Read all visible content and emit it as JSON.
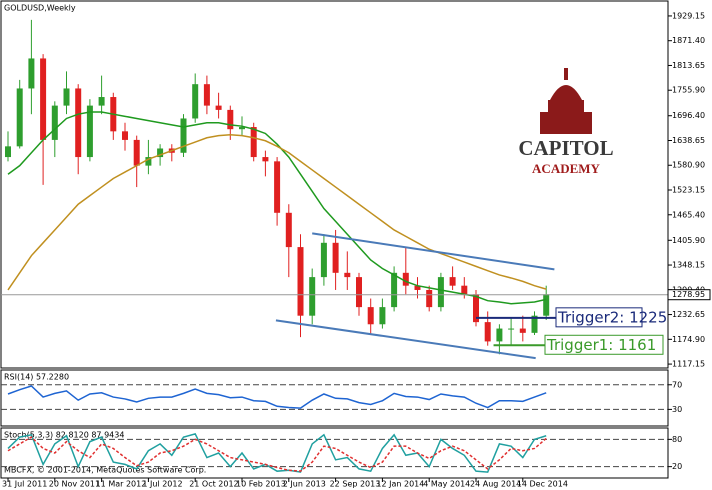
{
  "chart_data": [
    {
      "type": "candlestick",
      "title": "GOLDUSD,Weekly",
      "categories": [
        "31 Jul 2011",
        null,
        null,
        null,
        "20 Nov 2011",
        null,
        null,
        null,
        "11 Mar 2012",
        null,
        null,
        null,
        "1 Jul 2012",
        null,
        null,
        null,
        "21 Oct 2012",
        null,
        null,
        null,
        "10 Feb 2013",
        null,
        null,
        null,
        "2 Jun 2013",
        null,
        null,
        null,
        "22 Sep 2013",
        null,
        null,
        null,
        "12 Jan 2014",
        null,
        null,
        null,
        "4 May 2014",
        null,
        null,
        null,
        "24 Aug 2014",
        null,
        null,
        null,
        "14 Dec 2014",
        null,
        null
      ],
      "ohlc": [
        [
          1600,
          1660,
          1590,
          1625
        ],
        [
          1625,
          1780,
          1620,
          1760
        ],
        [
          1760,
          1920,
          1700,
          1830
        ],
        [
          1830,
          1840,
          1535,
          1640
        ],
        [
          1640,
          1730,
          1600,
          1720
        ],
        [
          1720,
          1800,
          1700,
          1760
        ],
        [
          1760,
          1770,
          1560,
          1600
        ],
        [
          1600,
          1735,
          1590,
          1720
        ],
        [
          1720,
          1790,
          1700,
          1740
        ],
        [
          1740,
          1750,
          1640,
          1660
        ],
        [
          1660,
          1680,
          1615,
          1640
        ],
        [
          1640,
          1650,
          1530,
          1580
        ],
        [
          1580,
          1640,
          1560,
          1600
        ],
        [
          1600,
          1630,
          1580,
          1620
        ],
        [
          1620,
          1630,
          1590,
          1610
        ],
        [
          1610,
          1700,
          1600,
          1690
        ],
        [
          1690,
          1795,
          1680,
          1770
        ],
        [
          1770,
          1790,
          1700,
          1720
        ],
        [
          1720,
          1750,
          1690,
          1710
        ],
        [
          1710,
          1720,
          1640,
          1665
        ],
        [
          1665,
          1695,
          1650,
          1670
        ],
        [
          1670,
          1680,
          1590,
          1600
        ],
        [
          1600,
          1615,
          1555,
          1590
        ],
        [
          1590,
          1600,
          1440,
          1470
        ],
        [
          1470,
          1490,
          1320,
          1390
        ],
        [
          1390,
          1420,
          1180,
          1230
        ],
        [
          1230,
          1340,
          1210,
          1320
        ],
        [
          1320,
          1420,
          1300,
          1400
        ],
        [
          1400,
          1430,
          1290,
          1330
        ],
        [
          1330,
          1380,
          1290,
          1320
        ],
        [
          1320,
          1330,
          1230,
          1250
        ],
        [
          1250,
          1270,
          1185,
          1210
        ],
        [
          1210,
          1270,
          1200,
          1250
        ],
        [
          1250,
          1345,
          1240,
          1330
        ],
        [
          1330,
          1390,
          1280,
          1300
        ],
        [
          1300,
          1320,
          1270,
          1290
        ],
        [
          1290,
          1300,
          1240,
          1250
        ],
        [
          1250,
          1330,
          1240,
          1320
        ],
        [
          1320,
          1345,
          1290,
          1300
        ],
        [
          1300,
          1320,
          1270,
          1280
        ],
        [
          1280,
          1290,
          1205,
          1215
        ],
        [
          1215,
          1240,
          1160,
          1170
        ],
        [
          1170,
          1210,
          1140,
          1200
        ],
        [
          1200,
          1225,
          1160,
          1200
        ],
        [
          1200,
          1230,
          1170,
          1190
        ],
        [
          1190,
          1240,
          1185,
          1230
        ],
        [
          1230,
          1300,
          1220,
          1280
        ]
      ],
      "up_color": "#2e9e2e",
      "down_color": "#e02020",
      "series": [
        {
          "color": "#1f9a1f",
          "values": [
            1560,
            1580,
            1610,
            1640,
            1665,
            1690,
            1700,
            1705,
            1705,
            1700,
            1695,
            1690,
            1685,
            1680,
            1675,
            1670,
            1675,
            1680,
            1680,
            1675,
            1672,
            1665,
            1655,
            1630,
            1600,
            1560,
            1520,
            1480,
            1450,
            1420,
            1390,
            1360,
            1340,
            1325,
            1310,
            1300,
            1295,
            1290,
            1285,
            1280,
            1275,
            1265,
            1262,
            1258,
            1260,
            1262,
            1268
          ]
        },
        {
          "color": "#c09020",
          "values": [
            1290,
            1330,
            1370,
            1400,
            1430,
            1460,
            1490,
            1510,
            1530,
            1550,
            1565,
            1580,
            1595,
            1605,
            1615,
            1625,
            1635,
            1645,
            1650,
            1652,
            1650,
            1645,
            1638,
            1625,
            1610,
            1590,
            1570,
            1550,
            1530,
            1510,
            1490,
            1470,
            1450,
            1430,
            1415,
            1400,
            1385,
            1375,
            1365,
            1355,
            1345,
            1335,
            1325,
            1318,
            1310,
            1300,
            1292
          ]
        }
      ],
      "trendlines": [
        {
          "color": "#4a7ab8",
          "x": [
            26,
            46.7
          ],
          "values": [
            1422,
            1338
          ]
        },
        {
          "color": "#4a7ab8",
          "x": [
            22.9,
            45.1
          ],
          "values": [
            1219,
            1131
          ]
        }
      ],
      "hlines": [
        {
          "label": "Trigger2: 1225",
          "value": 1225,
          "color": "#1a2a7a"
        },
        {
          "label": "Trigger1: 1161",
          "value": 1161,
          "color": "#3a9a2a"
        }
      ],
      "last_price": {
        "value": 1278.95,
        "label": "1278.95"
      },
      "ylim": [
        1108,
        1964
      ],
      "yticks": [
        {
          "value": 1929.15,
          "label": "1929.15"
        },
        {
          "value": 1871.4,
          "label": "1871.40"
        },
        {
          "value": 1813.65,
          "label": "1813.65"
        },
        {
          "value": 1755.9,
          "label": "1755.90"
        },
        {
          "value": 1696.4,
          "label": "1696.40"
        },
        {
          "value": 1638.65,
          "label": "1638.65"
        },
        {
          "value": 1580.9,
          "label": "1580.90"
        },
        {
          "value": 1523.15,
          "label": "1523.15"
        },
        {
          "value": 1465.4,
          "label": "1465.40"
        },
        {
          "value": 1405.9,
          "label": "1405.90"
        },
        {
          "value": 1348.15,
          "label": "1348.15"
        },
        {
          "value": 1290.4,
          "label": "1290.40"
        },
        {
          "value": 1232.65,
          "label": "1232.65"
        },
        {
          "value": 1174.9,
          "label": "1174.90"
        },
        {
          "value": 1117.15,
          "label": "1117.15"
        }
      ],
      "logo": {
        "line1": "CAPITOL",
        "line2": "ACADEMY"
      },
      "footer": "MBCFX, © 2001-2014, MetaQuotes Software Corp."
    },
    {
      "type": "line",
      "title": "RSI(14) 57.2280",
      "ylim": [
        3,
        94
      ],
      "yticks": [
        70,
        30
      ],
      "series": [
        {
          "color": "#1e64d2",
          "values": [
            55,
            62,
            68,
            50,
            56,
            60,
            45,
            55,
            57,
            50,
            47,
            42,
            48,
            50,
            50,
            56,
            63,
            56,
            54,
            49,
            50,
            44,
            43,
            35,
            33,
            32,
            45,
            55,
            48,
            47,
            41,
            38,
            44,
            56,
            51,
            50,
            46,
            55,
            52,
            50,
            40,
            33,
            44,
            44,
            43,
            50,
            57
          ]
        }
      ]
    },
    {
      "type": "line",
      "title": "Stoch(5,3,3) 82.8120 87.9434",
      "ylim": [
        -5,
        105
      ],
      "yticks": [
        80,
        20
      ],
      "series": [
        {
          "color": "#20a0a0",
          "values": [
            60,
            85,
            90,
            25,
            70,
            88,
            20,
            75,
            85,
            30,
            25,
            15,
            55,
            70,
            45,
            85,
            92,
            40,
            50,
            20,
            50,
            15,
            25,
            10,
            12,
            8,
            70,
            90,
            35,
            40,
            15,
            10,
            60,
            90,
            45,
            50,
            20,
            80,
            60,
            45,
            10,
            8,
            70,
            65,
            40,
            80,
            88
          ]
        },
        {
          "color": "#e03030",
          "dashed": true,
          "values": [
            55,
            70,
            85,
            60,
            50,
            75,
            55,
            40,
            70,
            60,
            40,
            22,
            30,
            50,
            55,
            65,
            80,
            70,
            55,
            40,
            35,
            30,
            25,
            18,
            12,
            10,
            30,
            65,
            60,
            45,
            30,
            18,
            30,
            65,
            65,
            50,
            38,
            55,
            65,
            55,
            35,
            15,
            35,
            60,
            55,
            60,
            82
          ]
        }
      ]
    }
  ]
}
